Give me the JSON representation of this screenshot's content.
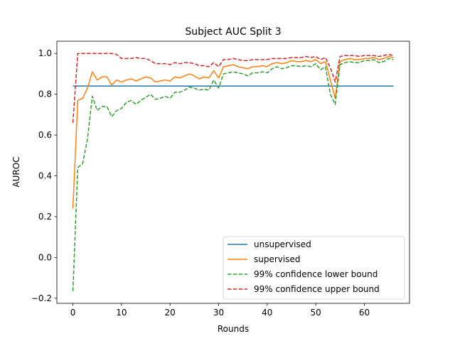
{
  "chart_data": {
    "type": "line",
    "title": "Subject AUC Split 3",
    "xlabel": "Rounds",
    "ylabel": "AUROC",
    "xlim": [
      -3.3,
      69.3
    ],
    "ylim": [
      -0.225,
      1.06
    ],
    "xticks": [
      0,
      10,
      20,
      30,
      40,
      50,
      60
    ],
    "yticks": [
      -0.2,
      0.0,
      0.2,
      0.4,
      0.6,
      0.8,
      1.0
    ],
    "ytick_labels": [
      "−0.2",
      "0.0",
      "0.2",
      "0.4",
      "0.6",
      "0.8",
      "1.0"
    ],
    "grid": false,
    "legend_position": "lower-right",
    "x": [
      0,
      1,
      2,
      3,
      4,
      5,
      6,
      7,
      8,
      9,
      10,
      11,
      12,
      13,
      14,
      15,
      16,
      17,
      18,
      19,
      20,
      21,
      22,
      23,
      24,
      25,
      26,
      27,
      28,
      29,
      30,
      31,
      32,
      33,
      34,
      35,
      36,
      37,
      38,
      39,
      40,
      41,
      42,
      43,
      44,
      45,
      46,
      47,
      48,
      49,
      50,
      51,
      52,
      53,
      54,
      55,
      56,
      57,
      58,
      59,
      60,
      61,
      62,
      63,
      64,
      65,
      66
    ],
    "series": [
      {
        "name": "unsupervised",
        "color": "#1f77b4",
        "style": "solid",
        "values": [
          0.84,
          0.84,
          0.84,
          0.84,
          0.84,
          0.84,
          0.84,
          0.84,
          0.84,
          0.84,
          0.84,
          0.84,
          0.84,
          0.84,
          0.84,
          0.84,
          0.84,
          0.84,
          0.84,
          0.84,
          0.84,
          0.84,
          0.84,
          0.84,
          0.84,
          0.84,
          0.84,
          0.84,
          0.84,
          0.84,
          0.84,
          0.84,
          0.84,
          0.84,
          0.84,
          0.84,
          0.84,
          0.84,
          0.84,
          0.84,
          0.84,
          0.84,
          0.84,
          0.84,
          0.84,
          0.84,
          0.84,
          0.84,
          0.84,
          0.84,
          0.84,
          0.84,
          0.84,
          0.84,
          0.84,
          0.84,
          0.84,
          0.84,
          0.84,
          0.84,
          0.84,
          0.84,
          0.84,
          0.84,
          0.84,
          0.84,
          0.84
        ]
      },
      {
        "name": "supervised",
        "color": "#ff7f0e",
        "style": "solid",
        "values": [
          0.24,
          0.77,
          0.78,
          0.83,
          0.91,
          0.87,
          0.885,
          0.885,
          0.845,
          0.87,
          0.86,
          0.87,
          0.875,
          0.865,
          0.875,
          0.885,
          0.88,
          0.86,
          0.865,
          0.87,
          0.865,
          0.885,
          0.88,
          0.89,
          0.9,
          0.89,
          0.875,
          0.885,
          0.88,
          0.915,
          0.88,
          0.935,
          0.94,
          0.945,
          0.935,
          0.93,
          0.925,
          0.935,
          0.935,
          0.94,
          0.935,
          0.95,
          0.955,
          0.95,
          0.955,
          0.965,
          0.96,
          0.96,
          0.965,
          0.96,
          0.97,
          0.95,
          0.96,
          0.87,
          0.78,
          0.96,
          0.97,
          0.975,
          0.97,
          0.97,
          0.975,
          0.975,
          0.98,
          0.97,
          0.975,
          0.985,
          0.98
        ]
      },
      {
        "name": "99% confidence lower bound",
        "color": "#2ca02c",
        "style": "dashed",
        "values": [
          -0.165,
          0.44,
          0.46,
          0.58,
          0.79,
          0.72,
          0.74,
          0.74,
          0.69,
          0.72,
          0.73,
          0.76,
          0.77,
          0.75,
          0.77,
          0.785,
          0.8,
          0.775,
          0.78,
          0.79,
          0.78,
          0.81,
          0.81,
          0.82,
          0.835,
          0.83,
          0.82,
          0.825,
          0.82,
          0.87,
          0.83,
          0.9,
          0.905,
          0.91,
          0.905,
          0.9,
          0.89,
          0.905,
          0.905,
          0.91,
          0.905,
          0.925,
          0.935,
          0.925,
          0.93,
          0.94,
          0.94,
          0.935,
          0.94,
          0.935,
          0.95,
          0.92,
          0.935,
          0.8,
          0.75,
          0.945,
          0.955,
          0.96,
          0.955,
          0.955,
          0.965,
          0.965,
          0.97,
          0.955,
          0.96,
          0.975,
          0.97
        ]
      },
      {
        "name": "99% confidence upper bound",
        "color": "#d62728",
        "style": "dashed",
        "values": [
          0.66,
          1.0,
          1.0,
          1.0,
          1.0,
          1.0,
          1.0,
          1.0,
          1.0,
          0.995,
          0.975,
          0.975,
          0.975,
          0.98,
          0.975,
          0.975,
          0.965,
          0.95,
          0.95,
          0.95,
          0.945,
          0.955,
          0.95,
          0.955,
          0.955,
          0.95,
          0.94,
          0.94,
          0.935,
          0.955,
          0.935,
          0.97,
          0.97,
          0.975,
          0.97,
          0.965,
          0.965,
          0.97,
          0.97,
          0.97,
          0.97,
          0.975,
          0.975,
          0.975,
          0.975,
          0.98,
          0.98,
          0.98,
          0.985,
          0.98,
          0.985,
          0.97,
          0.98,
          0.93,
          0.86,
          0.985,
          0.99,
          0.99,
          0.99,
          0.985,
          0.99,
          0.99,
          0.99,
          0.985,
          0.99,
          0.995,
          0.99
        ]
      }
    ]
  }
}
